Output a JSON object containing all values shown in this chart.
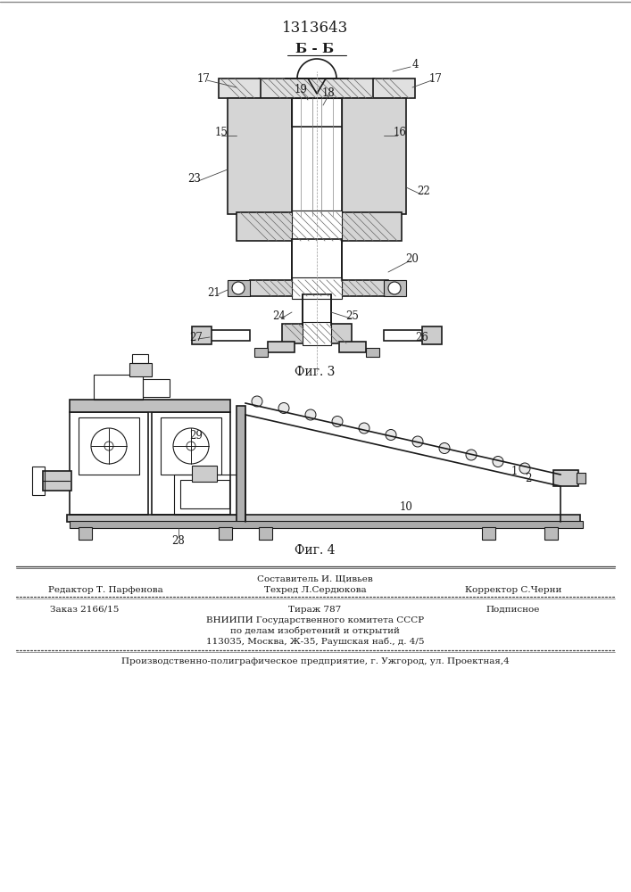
{
  "patent_number": "1313643",
  "fig3_label": "Фиг. 3",
  "fig4_label": "Фиг. 4",
  "section_label": "Б - Б",
  "line_color": "#1a1a1a",
  "footer": {
    "col2_line1": "Составитель И. Щивьев",
    "col1_line2": "Редактор Т. Парфенова",
    "col2_line2": "Техред Л.Сердюкова",
    "col3_line2": "Корректор С.Черни",
    "col1_line3": "Заказ 2166/15",
    "col2_line3": "Тираж 787",
    "col3_line3": "Подписное",
    "line4": "ВНИИПИ Государственного комитета СССР",
    "line5": "по делам изобретений и открытий",
    "line6": "113035, Москва, Ж-35, Раушская наб., д. 4/5",
    "line7": "Производственно-полиграфическое предприятие, г. Ужгород, ул. Проектная,4"
  }
}
